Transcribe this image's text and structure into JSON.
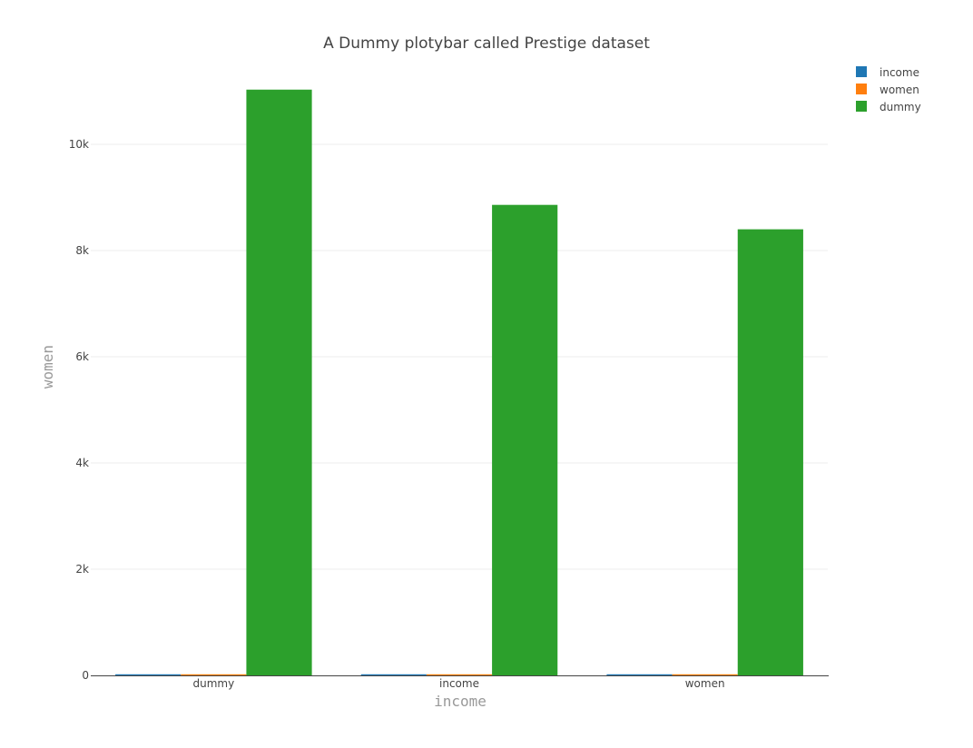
{
  "chart_data": {
    "type": "bar",
    "title": "A Dummy plotybar called Prestige dataset",
    "xlabel": "income",
    "ylabel": "women",
    "categories": [
      "dummy",
      "income",
      "women"
    ],
    "series": [
      {
        "name": "income",
        "color": "#1f77b4",
        "values": [
          20,
          20,
          20
        ]
      },
      {
        "name": "women",
        "color": "#ff7f0e",
        "values": [
          15,
          15,
          15
        ]
      },
      {
        "name": "dummy",
        "color": "#2ca02c",
        "values": [
          11030,
          8860,
          8400
        ]
      }
    ],
    "ylim": [
      0,
      11000
    ],
    "yticks": [
      0,
      2000,
      4000,
      6000,
      8000,
      10000
    ],
    "ytick_labels": [
      "0",
      "2k",
      "4k",
      "6k",
      "8k",
      "10k"
    ],
    "grid": true,
    "legend": "top-right"
  }
}
